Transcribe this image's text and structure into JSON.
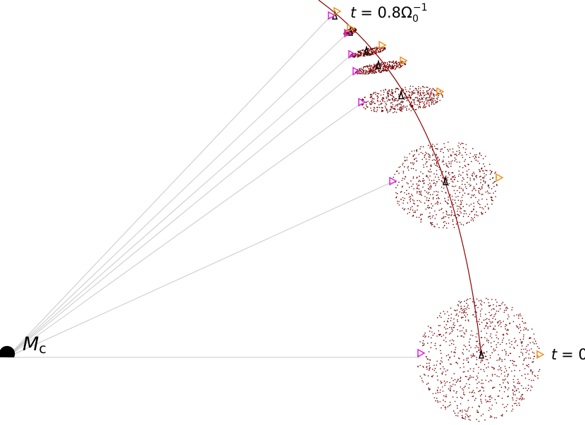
{
  "labels": {
    "central_mass": {
      "symbol": "M",
      "subscript": "c"
    },
    "time_final": {
      "variable": "t",
      "value": "= 0.8Ω",
      "subscript": "0",
      "superscript": "−1"
    },
    "time_initial": {
      "variable": "t",
      "value": "= 0"
    }
  }
}
